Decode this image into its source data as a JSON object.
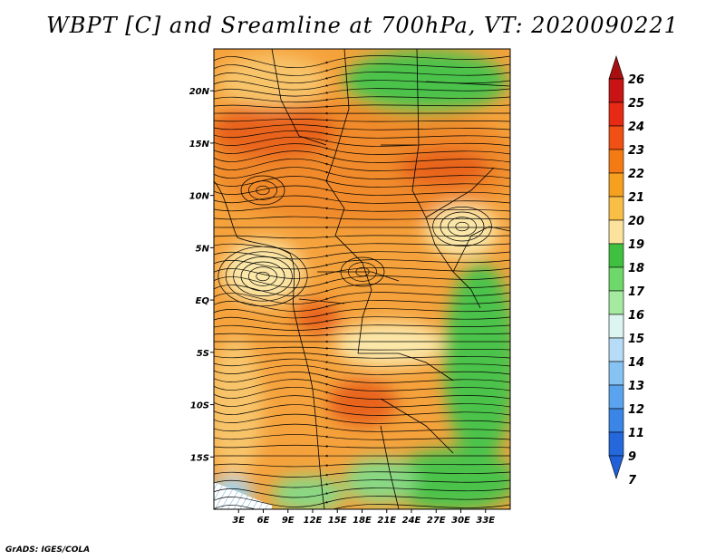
{
  "title": "WBPT [C] and Sreamline at 700hPa, VT: 2020090221",
  "footer": "GrADS: IGES/COLA",
  "map": {
    "lon_range": [
      0,
      36
    ],
    "lat_range": [
      -20,
      24
    ],
    "lat_ticks": [
      {
        "value": 20,
        "label": "20N"
      },
      {
        "value": 15,
        "label": "15N"
      },
      {
        "value": 10,
        "label": "10N"
      },
      {
        "value": 5,
        "label": "5N"
      },
      {
        "value": 0,
        "label": "EQ"
      },
      {
        "value": -5,
        "label": "5S"
      },
      {
        "value": -10,
        "label": "10S"
      },
      {
        "value": -15,
        "label": "15S"
      }
    ],
    "lon_ticks": [
      {
        "value": 3,
        "label": "3E"
      },
      {
        "value": 6,
        "label": "6E"
      },
      {
        "value": 9,
        "label": "9E"
      },
      {
        "value": 12,
        "label": "12E"
      },
      {
        "value": 15,
        "label": "15E"
      },
      {
        "value": 18,
        "label": "18E"
      },
      {
        "value": 21,
        "label": "21E"
      },
      {
        "value": 24,
        "label": "24E"
      },
      {
        "value": 27,
        "label": "27E"
      },
      {
        "value": 30,
        "label": "30E"
      },
      {
        "value": 33,
        "label": "33E"
      }
    ]
  },
  "colorbar": {
    "labels": [
      "26",
      "25",
      "24",
      "23",
      "22",
      "21",
      "20",
      "19",
      "18",
      "17",
      "16",
      "15",
      "14",
      "13",
      "12",
      "11",
      "9",
      "7"
    ],
    "colors": {
      "top_arrow": "#a81010",
      "bands": [
        "#c81414",
        "#e62a14",
        "#f05014",
        "#f47a14",
        "#f5a01e",
        "#f8be46",
        "#fbe39e",
        "#3fc13f",
        "#6fd86a",
        "#a5eaa0",
        "#dcf5f0",
        "#b7dcf7",
        "#86c2f2",
        "#5aa3ee",
        "#3a85e6",
        "#2468db"
      ],
      "bottom_arrow": "#1f5fd8"
    }
  },
  "field_colors": {
    "very_warm": "#e8641e",
    "warm": "#f08a2a",
    "mid": "#f5a23c",
    "mild": "#f8c46a",
    "cool": "#fbe7a8",
    "green": "#4cc34c",
    "light_green": "#88d884",
    "blue_hatch": "#9fd4ee"
  }
}
